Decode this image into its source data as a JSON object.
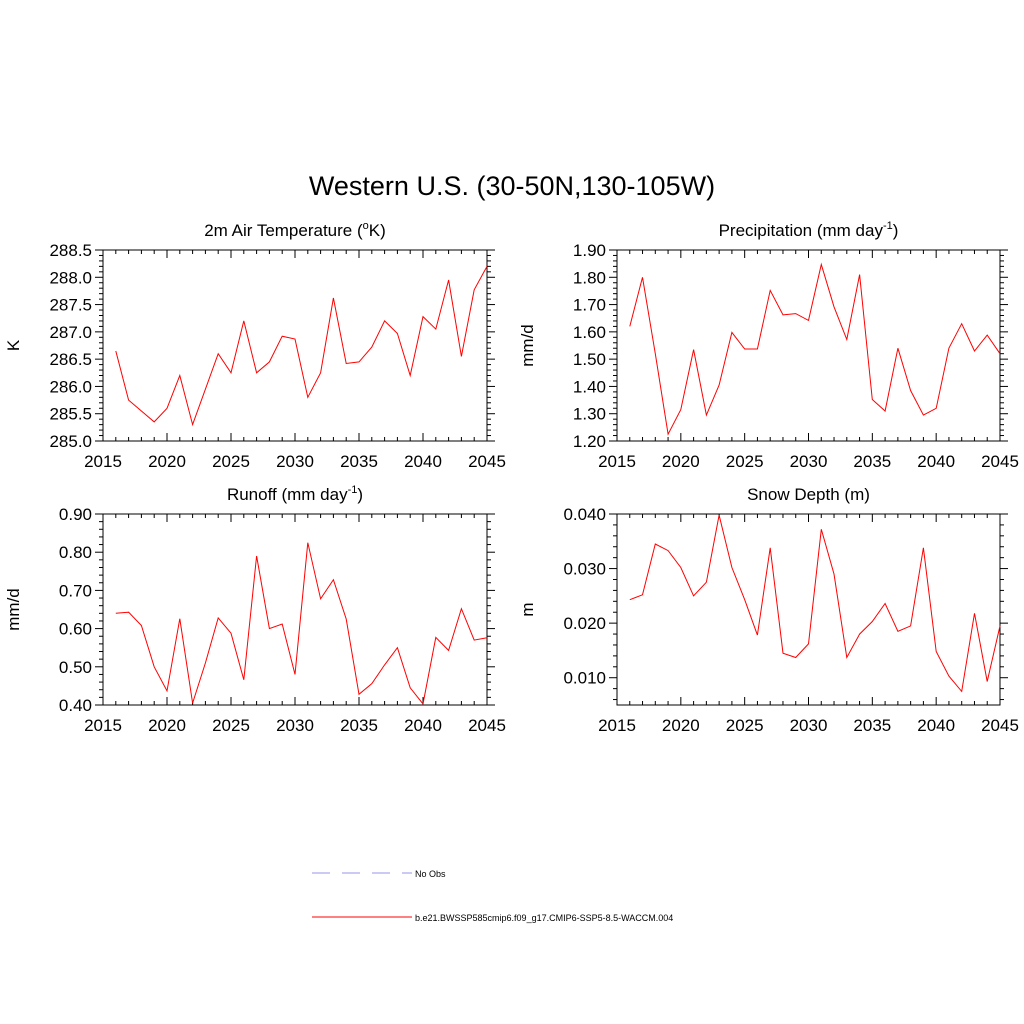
{
  "figure_title": "Western U.S. (30-50N,130-105W)",
  "legend": {
    "items": [
      {
        "label": "No Obs",
        "color": "#aaaaee",
        "style": "dashed"
      },
      {
        "label": "b.e21.BWSSP585cmip6.f09_g17.CMIP6-SSP5-8.5-WACCM.004",
        "color": "#ff0000",
        "style": "solid"
      }
    ]
  },
  "chart_data": [
    {
      "type": "line",
      "title": "2m Air Temperature (",
      "title_sup": "o",
      "title_end": "K)",
      "ylabel": "K",
      "xlim": [
        2015,
        2045
      ],
      "ylim": [
        285.0,
        288.5
      ],
      "xticks": [
        2015,
        2020,
        2025,
        2030,
        2035,
        2040,
        2045
      ],
      "yticks": [
        "285.0",
        "285.5",
        "286.0",
        "286.5",
        "287.0",
        "287.5",
        "288.0",
        "288.5"
      ],
      "series": [
        {
          "name": "b.e21.BWSSP585cmip6.f09_g17.CMIP6-SSP5-8.5-WACCM.004",
          "color": "#ff0000",
          "x": [
            2016,
            2017,
            2018,
            2019,
            2020,
            2021,
            2022,
            2023,
            2024,
            2025,
            2026,
            2027,
            2028,
            2029,
            2030,
            2031,
            2032,
            2033,
            2034,
            2035,
            2036,
            2037,
            2038,
            2039,
            2040,
            2041,
            2042,
            2043,
            2044,
            2045
          ],
          "values": [
            286.65,
            285.75,
            285.55,
            285.35,
            285.6,
            286.2,
            285.3,
            285.95,
            286.6,
            286.25,
            287.2,
            286.25,
            286.45,
            286.92,
            286.87,
            285.8,
            286.25,
            287.62,
            286.42,
            286.45,
            286.72,
            287.2,
            286.97,
            286.2,
            287.28,
            287.05,
            287.95,
            286.55,
            287.77,
            288.2
          ]
        }
      ]
    },
    {
      "type": "line",
      "title": "Precipitation (mm day",
      "title_sup": "-1",
      "title_end": ")",
      "ylabel": "mm/d",
      "xlim": [
        2015,
        2045
      ],
      "ylim": [
        1.2,
        1.9
      ],
      "xticks": [
        2015,
        2020,
        2025,
        2030,
        2035,
        2040,
        2045
      ],
      "yticks": [
        "1.20",
        "1.30",
        "1.40",
        "1.50",
        "1.60",
        "1.70",
        "1.80",
        "1.90"
      ],
      "series": [
        {
          "name": "b.e21.BWSSP585cmip6.f09_g17.CMIP6-SSP5-8.5-WACCM.004",
          "color": "#ff0000",
          "x": [
            2016,
            2017,
            2018,
            2019,
            2020,
            2021,
            2022,
            2023,
            2024,
            2025,
            2026,
            2027,
            2028,
            2029,
            2030,
            2031,
            2032,
            2033,
            2034,
            2035,
            2036,
            2037,
            2038,
            2039,
            2040,
            2041,
            2042,
            2043,
            2044,
            2045
          ],
          "values": [
            1.62,
            1.8,
            1.52,
            1.225,
            1.315,
            1.535,
            1.295,
            1.405,
            1.598,
            1.537,
            1.537,
            1.752,
            1.662,
            1.667,
            1.642,
            1.847,
            1.692,
            1.572,
            1.81,
            1.352,
            1.31,
            1.54,
            1.385,
            1.295,
            1.32,
            1.54,
            1.63,
            1.53,
            1.588,
            1.52
          ]
        }
      ]
    },
    {
      "type": "line",
      "title": "Runoff (mm day",
      "title_sup": "-1",
      "title_end": ")",
      "ylabel": "mm/d",
      "xlim": [
        2015,
        2045
      ],
      "ylim": [
        0.4,
        0.9
      ],
      "xticks": [
        2015,
        2020,
        2025,
        2030,
        2035,
        2040,
        2045
      ],
      "yticks": [
        "0.40",
        "0.50",
        "0.60",
        "0.70",
        "0.80",
        "0.90"
      ],
      "series": [
        {
          "name": "b.e21.BWSSP585cmip6.f09_g17.CMIP6-SSP5-8.5-WACCM.004",
          "color": "#ff0000",
          "x": [
            2016,
            2017,
            2018,
            2019,
            2020,
            2021,
            2022,
            2023,
            2024,
            2025,
            2026,
            2027,
            2028,
            2029,
            2030,
            2031,
            2032,
            2033,
            2034,
            2035,
            2036,
            2037,
            2038,
            2039,
            2040,
            2041,
            2042,
            2043,
            2044,
            2045
          ],
          "values": [
            0.64,
            0.643,
            0.608,
            0.5,
            0.437,
            0.626,
            0.405,
            0.51,
            0.628,
            0.588,
            0.466,
            0.79,
            0.6,
            0.612,
            0.48,
            0.825,
            0.678,
            0.728,
            0.625,
            0.428,
            0.456,
            0.505,
            0.55,
            0.445,
            0.403,
            0.577,
            0.543,
            0.652,
            0.57,
            0.576
          ]
        }
      ]
    },
    {
      "type": "line",
      "title": "Snow Depth (m)",
      "title_sup": "",
      "title_end": "",
      "ylabel": "m",
      "xlim": [
        2015,
        2045
      ],
      "ylim": [
        0.005,
        0.04
      ],
      "xticks": [
        2015,
        2020,
        2025,
        2030,
        2035,
        2040,
        2045
      ],
      "yticks": [
        "0.010",
        "0.020",
        "0.030",
        "0.040"
      ],
      "ytick_values": [
        0.01,
        0.02,
        0.03,
        0.04
      ],
      "series": [
        {
          "name": "b.e21.BWSSP585cmip6.f09_g17.CMIP6-SSP5-8.5-WACCM.004",
          "color": "#ff0000",
          "x": [
            2016,
            2017,
            2018,
            2019,
            2020,
            2021,
            2022,
            2023,
            2024,
            2025,
            2026,
            2027,
            2028,
            2029,
            2030,
            2031,
            2032,
            2033,
            2034,
            2035,
            2036,
            2037,
            2038,
            2039,
            2040,
            2041,
            2042,
            2043,
            2044,
            2045
          ],
          "values": [
            0.0243,
            0.0252,
            0.0345,
            0.0333,
            0.0302,
            0.025,
            0.0275,
            0.0398,
            0.0302,
            0.0243,
            0.0178,
            0.0338,
            0.0145,
            0.0137,
            0.0162,
            0.0372,
            0.029,
            0.0137,
            0.018,
            0.0203,
            0.0236,
            0.0185,
            0.0195,
            0.0338,
            0.0148,
            0.0103,
            0.0075,
            0.0218,
            0.0093,
            0.0195
          ]
        }
      ]
    }
  ]
}
